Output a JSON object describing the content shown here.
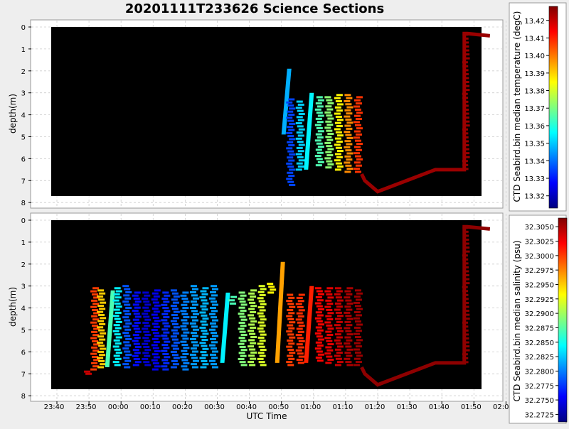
{
  "title": "20201111T233626 Science Sections",
  "colors": {
    "background": "#eeeeee",
    "plot_bg": "#000000",
    "grid": "#cccccc",
    "title": "#000000",
    "colormap": [
      "#00007f",
      "#0000ff",
      "#007fff",
      "#00ffff",
      "#7fff7f",
      "#ffff00",
      "#ff7f00",
      "#ff0000",
      "#7f0000"
    ]
  },
  "chart_data": [
    {
      "type": "heatmap",
      "name": "temperature",
      "ylabel": "depth(m)",
      "yticks": [
        "0",
        "1",
        "2",
        "3",
        "4",
        "5",
        "6",
        "7",
        "8"
      ],
      "ylim": [
        8,
        0
      ],
      "y_inverted": true,
      "grid": true,
      "colorbar": {
        "label": "CTD Seabird.bin median temperature (degC)",
        "range": [
          13.313,
          13.428
        ],
        "ticks": [
          "13.32",
          "13.33",
          "13.34",
          "13.35",
          "13.36",
          "13.37",
          "13.38",
          "13.39",
          "13.40",
          "13.41",
          "13.42"
        ]
      },
      "profiles": [
        {
          "time_min": 52,
          "depth": [
            1.9,
            4.9
          ],
          "value": 13.347,
          "dir": "up"
        },
        {
          "time_min": 53,
          "depth": [
            3.3,
            7.2
          ],
          "value": 13.335,
          "dir": "bars"
        },
        {
          "time_min": 56,
          "depth": [
            3.4,
            6.5
          ],
          "value": 13.351,
          "dir": "bars"
        },
        {
          "time_min": 59,
          "depth": [
            3.0,
            6.5
          ],
          "value": 13.355,
          "dir": "up"
        },
        {
          "time_min": 62,
          "depth": [
            3.2,
            6.3
          ],
          "value": 13.365,
          "dir": "bars"
        },
        {
          "time_min": 65,
          "depth": [
            3.2,
            6.4
          ],
          "value": 13.372,
          "dir": "bars"
        },
        {
          "time_min": 68,
          "depth": [
            3.1,
            6.5
          ],
          "value": 13.386,
          "dir": "bars"
        },
        {
          "time_min": 71,
          "depth": [
            3.1,
            6.6
          ],
          "value": 13.398,
          "dir": "bars"
        },
        {
          "time_min": 74,
          "depth": [
            3.2,
            6.6
          ],
          "value": 13.408,
          "dir": "bars"
        }
      ],
      "tail": {
        "value": 13.425
      }
    },
    {
      "type": "heatmap",
      "name": "salinity",
      "xlabel": "UTC Time",
      "ylabel": "depth(m)",
      "xticks": [
        "23:40",
        "23:50",
        "00:00",
        "00:10",
        "00:20",
        "00:30",
        "00:40",
        "00:50",
        "01:00",
        "01:10",
        "01:20",
        "01:30",
        "01:40",
        "01:50",
        "02:00"
      ],
      "yticks": [
        "0",
        "1",
        "2",
        "3",
        "4",
        "5",
        "6",
        "7",
        "8"
      ],
      "ylim": [
        8,
        0
      ],
      "y_inverted": true,
      "grid": true,
      "colorbar": {
        "label": "CTD Seabird.bin median salinity (psu)",
        "range": [
          32.2712,
          32.3065
        ],
        "ticks": [
          "32.2725",
          "32.2750",
          "32.2775",
          "32.2800",
          "32.2825",
          "32.2850",
          "32.2875",
          "32.2900",
          "32.2925",
          "32.2950",
          "32.2975",
          "32.3000",
          "32.3025",
          "32.3050"
        ]
      },
      "profiles": [
        {
          "time_min": -10,
          "depth": [
            6.9,
            7.0
          ],
          "value": 32.304,
          "dir": "bars"
        },
        {
          "time_min": -8,
          "depth": [
            3.1,
            6.8
          ],
          "value": 32.3,
          "dir": "bars"
        },
        {
          "time_min": -6,
          "depth": [
            3.2,
            6.7
          ],
          "value": 32.295,
          "dir": "bars"
        },
        {
          "time_min": -3,
          "depth": [
            3.2,
            6.7
          ],
          "value": 32.287,
          "dir": "up"
        },
        {
          "time_min": -1,
          "depth": [
            3.1,
            6.6
          ],
          "value": 32.284,
          "dir": "bars"
        },
        {
          "time_min": 2,
          "depth": [
            3.0,
            6.7
          ],
          "value": 32.2785,
          "dir": "bars"
        },
        {
          "time_min": 5,
          "depth": [
            3.3,
            6.6
          ],
          "value": 32.276,
          "dir": "bars"
        },
        {
          "time_min": 8,
          "depth": [
            3.3,
            6.6
          ],
          "value": 32.274,
          "dir": "bars"
        },
        {
          "time_min": 11,
          "depth": [
            3.2,
            6.8
          ],
          "value": 32.275,
          "dir": "bars"
        },
        {
          "time_min": 14,
          "depth": [
            3.3,
            6.8
          ],
          "value": 32.277,
          "dir": "bars"
        },
        {
          "time_min": 17,
          "depth": [
            3.2,
            6.7
          ],
          "value": 32.2785,
          "dir": "bars"
        },
        {
          "time_min": 20,
          "depth": [
            3.3,
            6.8
          ],
          "value": 32.28,
          "dir": "bars"
        },
        {
          "time_min": 23,
          "depth": [
            3.0,
            6.7
          ],
          "value": 32.281,
          "dir": "bars"
        },
        {
          "time_min": 26,
          "depth": [
            3.1,
            6.7
          ],
          "value": 32.282,
          "dir": "bars"
        },
        {
          "time_min": 29,
          "depth": [
            3.0,
            6.7
          ],
          "value": 32.281,
          "dir": "bars"
        },
        {
          "time_min": 32,
          "depth": [
            3.3,
            6.5
          ],
          "value": 32.284,
          "dir": "down"
        },
        {
          "time_min": 35,
          "depth": [
            3.5,
            3.8
          ],
          "value": 32.287,
          "dir": "bars"
        },
        {
          "time_min": 38,
          "depth": [
            3.3,
            6.6
          ],
          "value": 32.289,
          "dir": "bars"
        },
        {
          "time_min": 41,
          "depth": [
            3.2,
            6.6
          ],
          "value": 32.2905,
          "dir": "bars"
        },
        {
          "time_min": 44,
          "depth": [
            3.0,
            6.6
          ],
          "value": 32.292,
          "dir": "bars"
        },
        {
          "time_min": 47,
          "depth": [
            2.9,
            3.3
          ],
          "value": 32.2935,
          "dir": "bars"
        },
        {
          "time_min": 50,
          "depth": [
            1.9,
            6.5
          ],
          "value": 32.2965,
          "dir": "up"
        },
        {
          "time_min": 53,
          "depth": [
            3.4,
            6.6
          ],
          "value": 32.3,
          "dir": "bars"
        },
        {
          "time_min": 56,
          "depth": [
            3.4,
            6.5
          ],
          "value": 32.3005,
          "dir": "bars"
        },
        {
          "time_min": 59,
          "depth": [
            3.0,
            6.5
          ],
          "value": 32.301,
          "dir": "up"
        },
        {
          "time_min": 62,
          "depth": [
            3.1,
            6.4
          ],
          "value": 32.302,
          "dir": "bars"
        },
        {
          "time_min": 65,
          "depth": [
            3.1,
            6.5
          ],
          "value": 32.303,
          "dir": "bars"
        },
        {
          "time_min": 68,
          "depth": [
            3.1,
            6.6
          ],
          "value": 32.304,
          "dir": "bars"
        },
        {
          "time_min": 71,
          "depth": [
            3.1,
            6.6
          ],
          "value": 32.305,
          "dir": "bars"
        },
        {
          "time_min": 74,
          "depth": [
            3.2,
            6.6
          ],
          "value": 32.3055,
          "dir": "bars"
        }
      ],
      "tail": {
        "value": 32.306
      }
    }
  ],
  "tail_track": {
    "time_min": [
      75,
      76,
      80,
      98,
      107,
      107,
      108,
      115
    ],
    "depth": [
      6.7,
      7.0,
      7.5,
      6.5,
      6.5,
      0.3,
      0.3,
      0.4
    ]
  }
}
